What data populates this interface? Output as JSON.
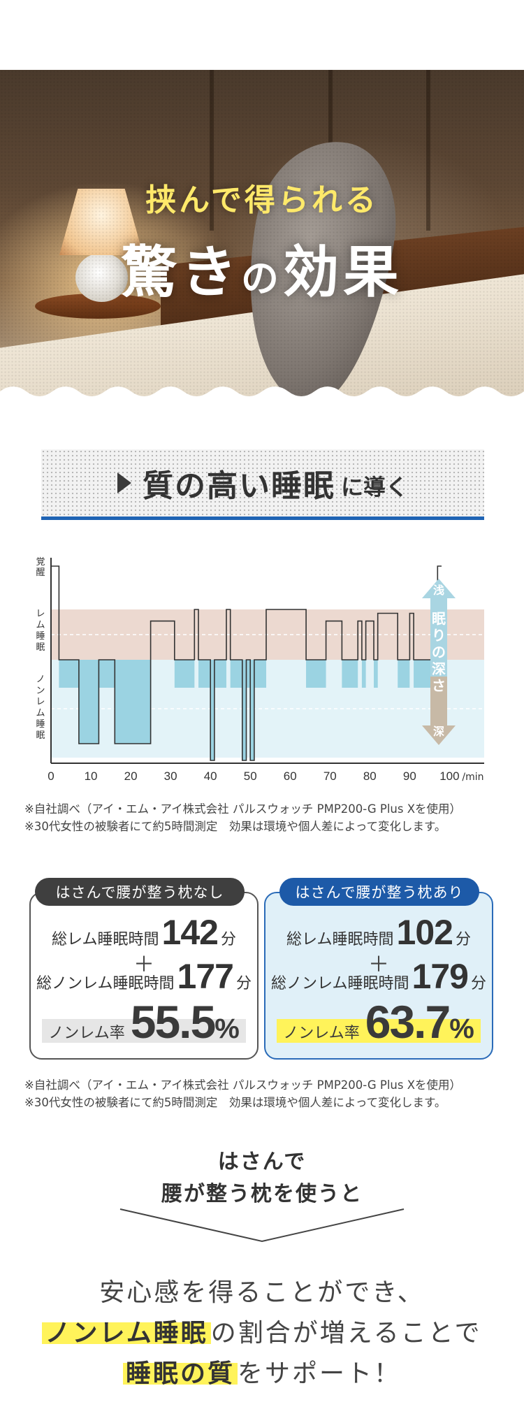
{
  "hero": {
    "subtitle": "挟んで得られる",
    "title_part1": "驚き",
    "title_part2": "の",
    "title_part3": "効果"
  },
  "section": {
    "heading_main": "質の高い睡眠",
    "heading_small": "に導く"
  },
  "chart_data": {
    "type": "line",
    "y_categories": [
      "覚醒",
      "レム睡眠",
      "ノンレム睡眠"
    ],
    "y_category_labels": {
      "awake": "覚醒",
      "rem": "レム睡眠",
      "nonrem": "ノンレム睡眠"
    },
    "x_ticks": [
      "0",
      "10",
      "20",
      "30",
      "40",
      "50",
      "60",
      "70",
      "80",
      "90",
      "100"
    ],
    "x_unit": "min",
    "xlim": [
      0,
      100
    ],
    "depth_scale": {
      "top": "浅",
      "middle": "眠りの深さ",
      "bottom": "深"
    },
    "series": [
      {
        "points": [
          [
            0,
            4
          ],
          [
            2,
            4
          ],
          [
            2,
            1
          ],
          [
            7,
            1
          ],
          [
            7,
            0
          ],
          [
            12,
            0
          ],
          [
            12,
            1
          ],
          [
            16,
            1
          ],
          [
            16,
            0
          ],
          [
            25,
            0
          ],
          [
            25,
            2
          ],
          [
            31,
            2
          ],
          [
            31,
            1
          ],
          [
            36,
            1
          ],
          [
            36,
            2.3
          ],
          [
            37,
            2.3
          ],
          [
            37,
            1
          ],
          [
            40,
            1
          ],
          [
            40,
            -0.2
          ],
          [
            41,
            -0.2
          ],
          [
            41,
            1
          ],
          [
            44,
            1
          ],
          [
            44,
            2.3
          ],
          [
            45,
            2.3
          ],
          [
            45,
            1
          ],
          [
            48,
            1
          ],
          [
            48,
            -0.2
          ],
          [
            49,
            -0.2
          ],
          [
            49,
            1
          ],
          [
            50,
            1
          ],
          [
            50,
            -0.2
          ],
          [
            51,
            -0.2
          ],
          [
            51,
            1
          ],
          [
            54,
            1
          ],
          [
            54,
            2.3
          ],
          [
            64,
            2.3
          ],
          [
            64,
            1
          ],
          [
            69,
            1
          ],
          [
            69,
            2
          ],
          [
            73,
            2
          ],
          [
            73,
            1
          ],
          [
            77,
            1
          ],
          [
            77,
            2
          ],
          [
            78,
            2
          ],
          [
            78,
            1
          ],
          [
            79,
            1
          ],
          [
            79,
            2
          ],
          [
            81,
            2
          ],
          [
            81,
            1
          ],
          [
            82,
            1
          ],
          [
            82,
            2.2
          ],
          [
            87,
            2.2
          ],
          [
            87,
            1
          ],
          [
            90,
            1
          ],
          [
            90,
            2.2
          ],
          [
            91,
            2.2
          ],
          [
            91,
            1
          ],
          [
            97,
            1
          ],
          [
            97,
            4
          ],
          [
            98,
            4
          ]
        ]
      }
    ]
  },
  "note1": {
    "line1": "※自社調べ（アイ・エム・アイ株式会社 パルスウォッチ PMP200-G Plus Xを使用）",
    "line2": "※30代女性の被験者にて約5時間測定　効果は環境や個人差によって変化します。"
  },
  "cards": {
    "without": {
      "tab": "はさんで腰が整う枕なし",
      "rem_label": "総レム睡眠時間",
      "rem_value": "142",
      "rem_unit": "分",
      "plus": "＋",
      "nonrem_label": "総ノンレム睡眠時間",
      "nonrem_value": "177",
      "nonrem_unit": "分",
      "rate_label": "ノンレム率",
      "rate_value": "55.5",
      "rate_unit": "%",
      "rate_color": "#e6e6e6"
    },
    "with": {
      "tab": "はさんで腰が整う枕あり",
      "rem_label": "総レム睡眠時間",
      "rem_value": "102",
      "rem_unit": "分",
      "plus": "＋",
      "nonrem_label": "総ノンレム睡眠時間",
      "nonrem_value": "179",
      "nonrem_unit": "分",
      "rate_label": "ノンレム率",
      "rate_value": "63.7",
      "rate_unit": "%",
      "rate_color": "#fff35a"
    }
  },
  "note2": {
    "line1": "※自社調べ（アイ・エム・アイ株式会社 パルスウォッチ PMP200-G Plus Xを使用）",
    "line2": "※30代女性の被験者にて約5時間測定　効果は環境や個人差によって変化します。"
  },
  "conclusion": {
    "top_line1": "はさんで",
    "top_line2": "腰が整う枕を使うと",
    "line1": "安心感を得ることができ、",
    "line2_highlight": "ノンレム睡眠",
    "line2_rest": "の割合が増えることで",
    "line3_highlight": "睡眠の質",
    "line3_rest": "をサポート！"
  },
  "colors": {
    "accent_blue": "#1f63b4",
    "highlight_yellow": "#fff35a",
    "rem_band": "#ecd9d0",
    "nonrem_band": "#e3f3f8",
    "nonrem_fill": "#9bd3e2"
  }
}
